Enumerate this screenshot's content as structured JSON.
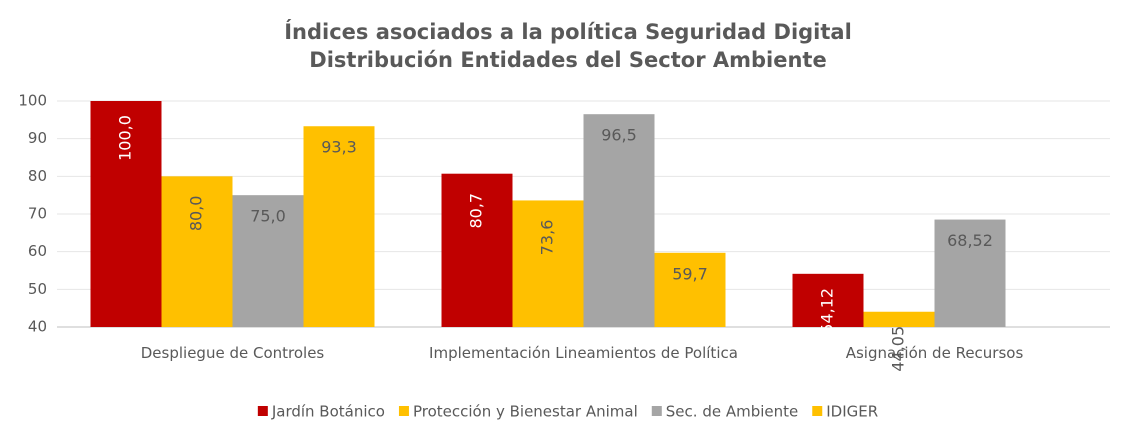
{
  "chart_data": {
    "type": "bar",
    "title": "Índices asociados a la política Seguridad Digital",
    "subtitle": "Distribución Entidades del Sector Ambiente",
    "categories": [
      "Despliegue de Controles",
      "Implementación Lineamientos de Política",
      "Asignación de Recursos"
    ],
    "series": [
      {
        "name": "Jardín Botánico",
        "color": "#c00000",
        "values": [
          100.0,
          80.7,
          54.12
        ],
        "value_labels": [
          "100,0",
          "80,7",
          "54,12"
        ]
      },
      {
        "name": "Protección y Bienestar Animal",
        "color": "#ffc000",
        "values": [
          80.0,
          73.6,
          44.05
        ],
        "value_labels": [
          "80,0",
          "73,6",
          "44,05"
        ]
      },
      {
        "name": "Sec. de Ambiente",
        "color": "#a5a5a5",
        "values": [
          75.0,
          96.5,
          68.52
        ],
        "value_labels": [
          "75,0",
          "96,5",
          "68,52"
        ]
      },
      {
        "name": "IDIGER",
        "color": "#ffc000",
        "values": [
          93.3,
          59.7,
          null
        ],
        "value_labels": [
          "93,3",
          "59,7",
          null
        ]
      }
    ],
    "ylim": [
      40,
      100
    ],
    "yticks": [
      40,
      50,
      60,
      70,
      80,
      90,
      100
    ],
    "grid": true,
    "legend": "bottom"
  }
}
